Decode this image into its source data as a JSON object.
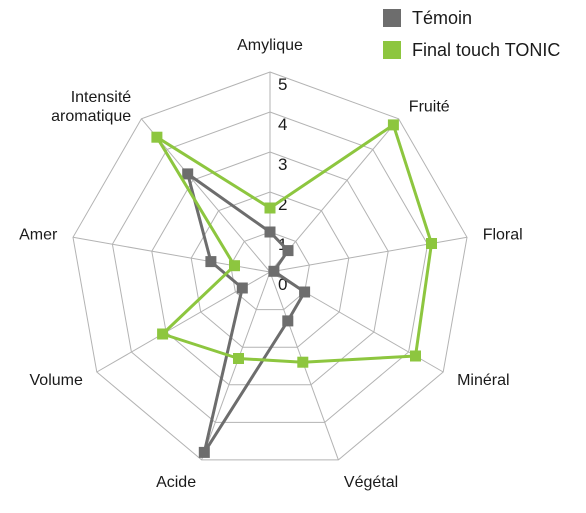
{
  "chart_data": {
    "type": "radar",
    "axes": [
      [
        "Amylique"
      ],
      [
        "Fruité"
      ],
      [
        "Floral"
      ],
      [
        "Minéral"
      ],
      [
        "Végétal"
      ],
      [
        "Acide"
      ],
      [
        "Volume"
      ],
      [
        "Amer"
      ],
      [
        "Intensité",
        "aromatique"
      ]
    ],
    "rmax": 5,
    "ticks": [
      "0",
      "1",
      "2",
      "3",
      "4",
      "5"
    ],
    "grid": true,
    "legend_position": "top-right",
    "series": [
      {
        "name": "Témoin",
        "color": "#6d6d6d",
        "values": [
          1.0,
          0.7,
          0.1,
          1.0,
          1.3,
          4.8,
          0.8,
          1.5,
          3.2
        ]
      },
      {
        "name": "Final touch TONIC",
        "color": "#8dc63f",
        "values": [
          1.6,
          4.8,
          4.1,
          4.2,
          2.4,
          2.3,
          3.1,
          0.9,
          4.4
        ]
      }
    ]
  }
}
